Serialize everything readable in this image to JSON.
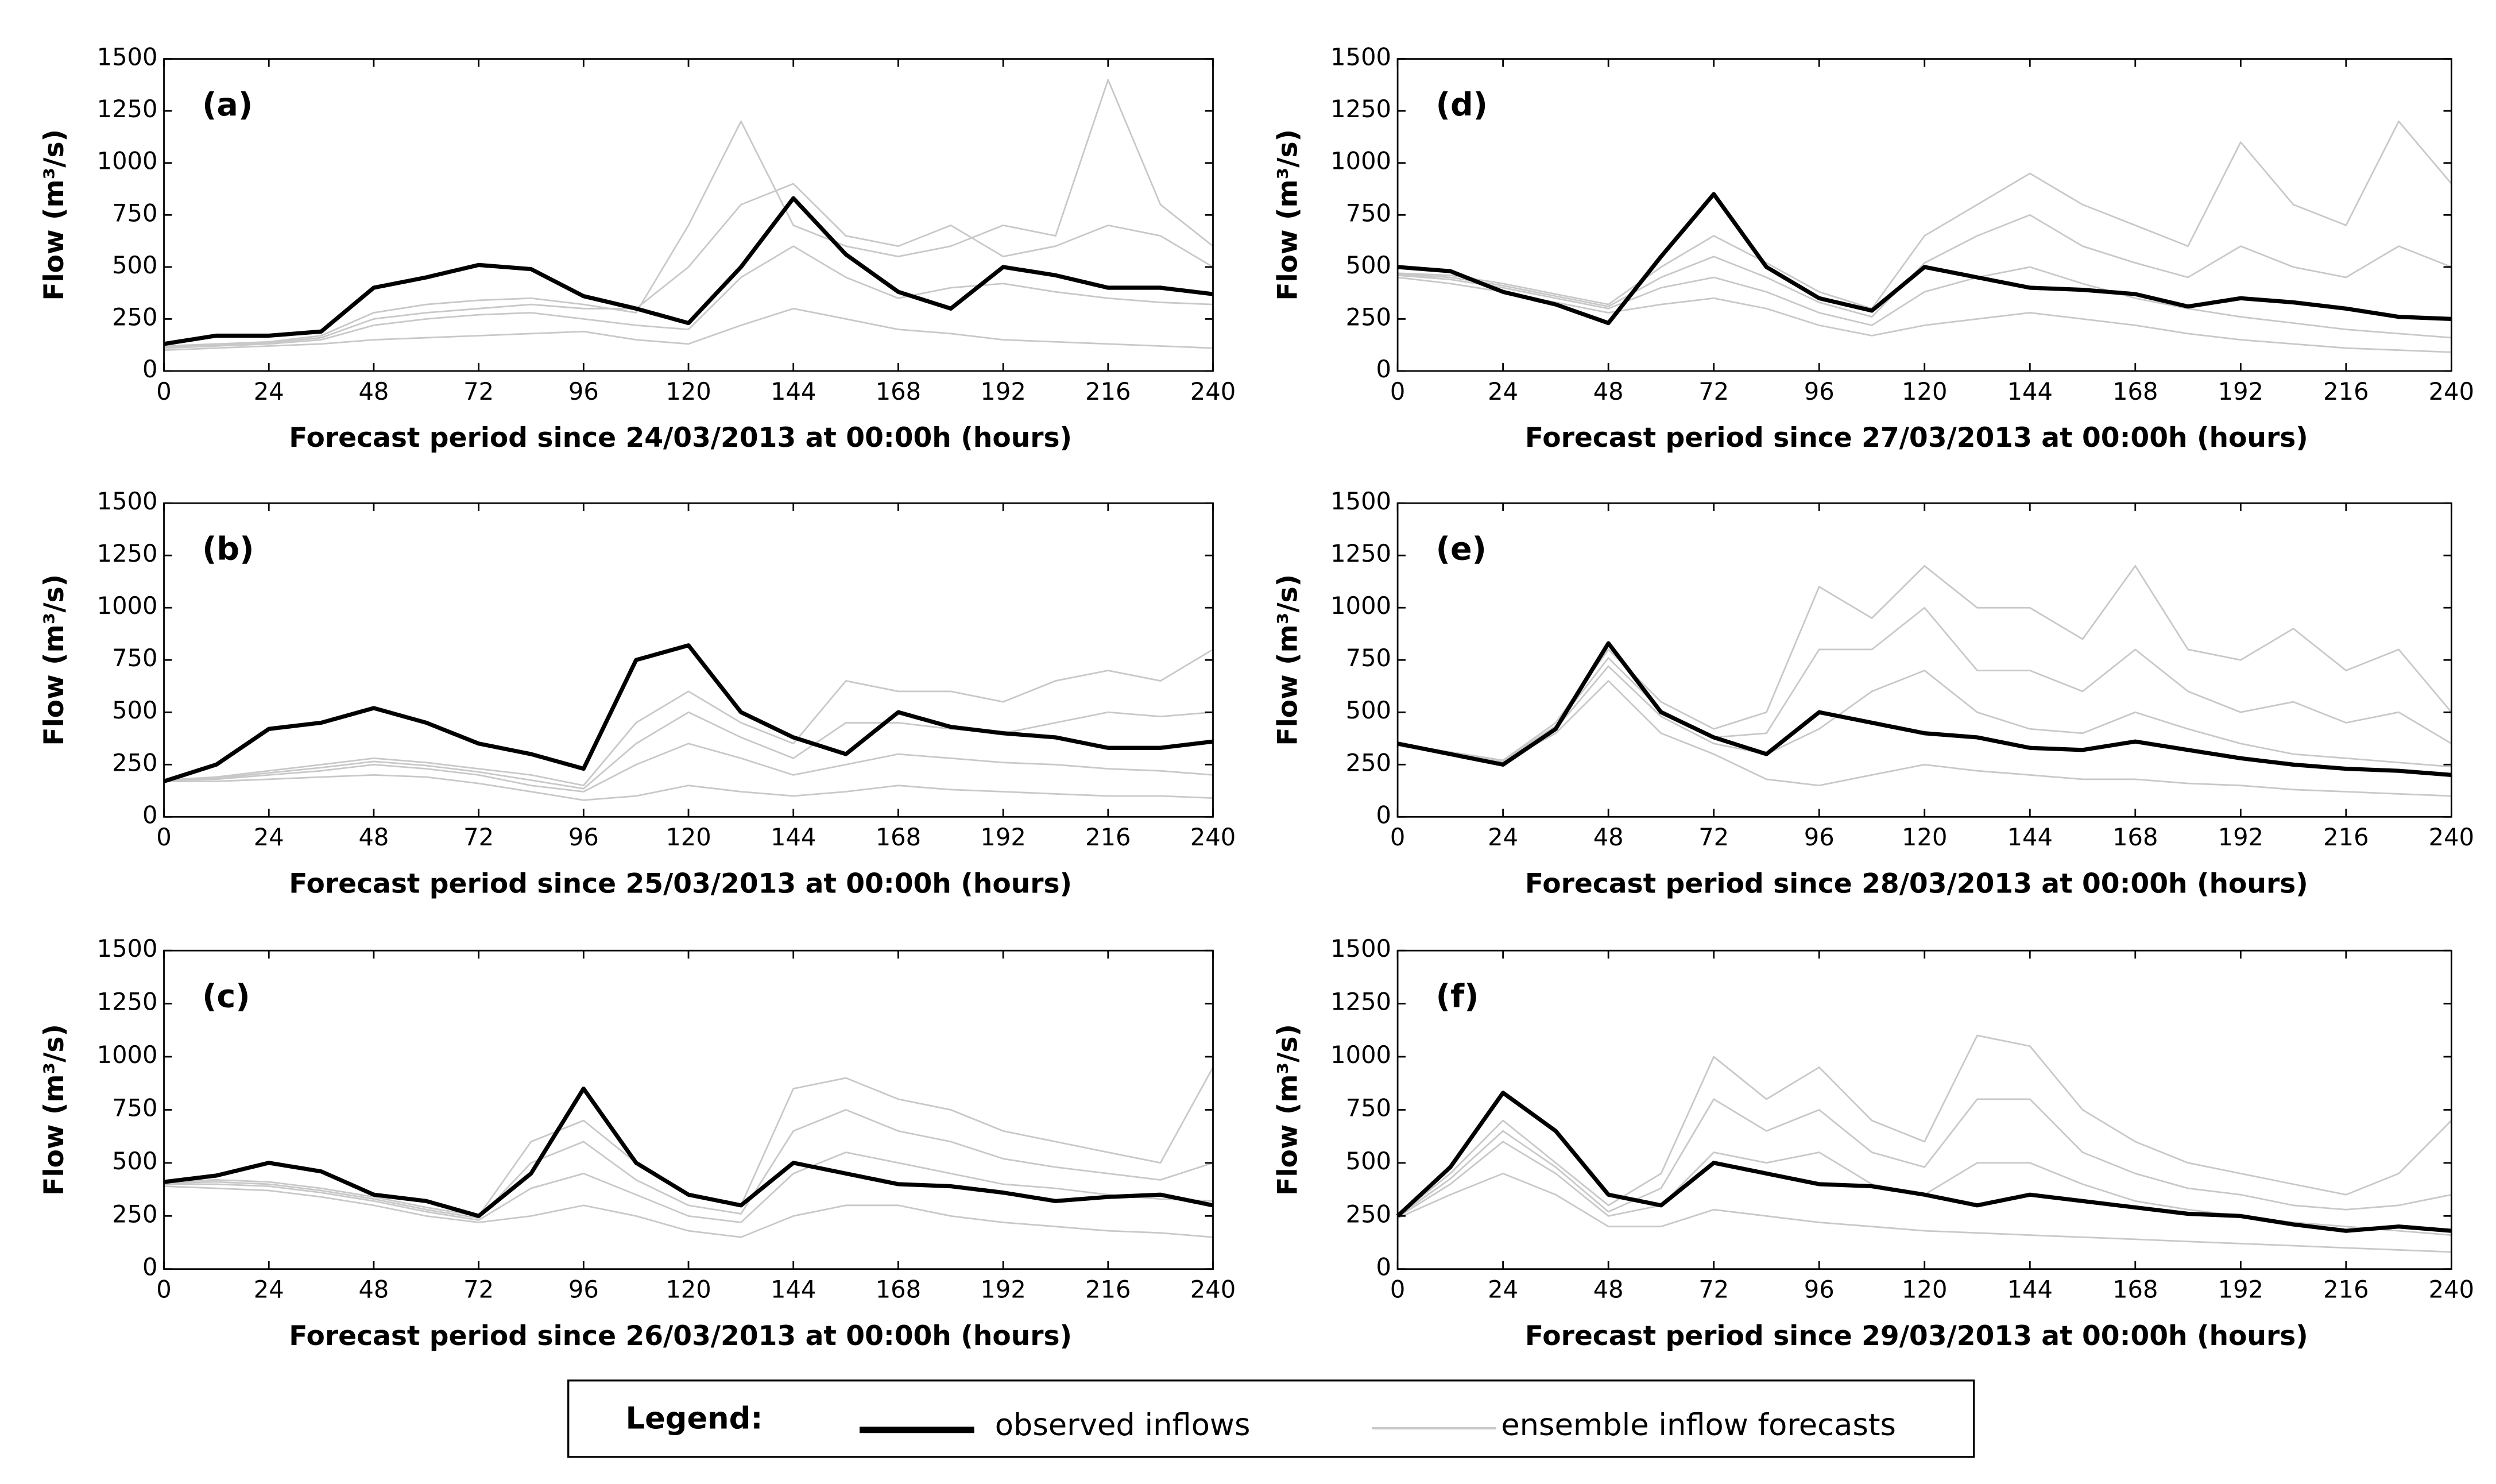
{
  "chart_data": [
    {
      "type": "line",
      "label": "(a)",
      "xlabel": "Forecast period since 24/03/2013 at 00:00h (hours)",
      "ylabel": "Flow (m³/s)",
      "x": [
        0,
        12,
        24,
        36,
        48,
        60,
        72,
        84,
        96,
        108,
        120,
        132,
        144,
        156,
        168,
        180,
        192,
        204,
        216,
        228,
        240
      ],
      "xlim": [
        0,
        240
      ],
      "ylim": [
        0,
        1500
      ],
      "xticks": [
        0,
        24,
        48,
        72,
        96,
        120,
        144,
        168,
        192,
        216,
        240
      ],
      "yticks": [
        0,
        250,
        500,
        750,
        1000,
        1250,
        1500
      ],
      "series": [
        {
          "name": "observed inflows",
          "color": "#000000",
          "values": [
            130,
            170,
            170,
            190,
            400,
            450,
            510,
            490,
            360,
            300,
            230,
            500,
            830,
            560,
            380,
            300,
            500,
            460,
            400,
            400,
            370
          ]
        },
        {
          "name": "ensemble inflow forecasts",
          "color": "#c8c8c8",
          "members": [
            [
              100,
              110,
              120,
              130,
              150,
              160,
              170,
              180,
              190,
              150,
              130,
              220,
              300,
              250,
              200,
              180,
              150,
              140,
              130,
              120,
              110
            ],
            [
              110,
              120,
              130,
              150,
              220,
              250,
              270,
              280,
              250,
              220,
              200,
              450,
              600,
              450,
              350,
              400,
              420,
              380,
              350,
              330,
              320
            ],
            [
              115,
              125,
              135,
              160,
              250,
              280,
              300,
              320,
              300,
              300,
              500,
              800,
              900,
              650,
              600,
              700,
              550,
              600,
              700,
              650,
              500
            ],
            [
              120,
              130,
              140,
              170,
              280,
              320,
              340,
              350,
              320,
              280,
              700,
              1200,
              700,
              600,
              550,
              600,
              700,
              650,
              1400,
              800,
              600
            ]
          ]
        }
      ]
    },
    {
      "type": "line",
      "label": "(b)",
      "xlabel": "Forecast period since 25/03/2013 at 00:00h (hours)",
      "ylabel": "Flow (m³/s)",
      "x": [
        0,
        12,
        24,
        36,
        48,
        60,
        72,
        84,
        96,
        108,
        120,
        132,
        144,
        156,
        168,
        180,
        192,
        204,
        216,
        228,
        240
      ],
      "xlim": [
        0,
        240
      ],
      "ylim": [
        0,
        1500
      ],
      "xticks": [
        0,
        24,
        48,
        72,
        96,
        120,
        144,
        168,
        192,
        216,
        240
      ],
      "yticks": [
        0,
        250,
        500,
        750,
        1000,
        1250,
        1500
      ],
      "series": [
        {
          "name": "observed inflows",
          "color": "#000000",
          "values": [
            170,
            250,
            420,
            450,
            520,
            450,
            350,
            300,
            230,
            750,
            820,
            500,
            380,
            300,
            500,
            430,
            400,
            380,
            330,
            330,
            360
          ]
        },
        {
          "name": "ensemble inflow forecasts",
          "color": "#c8c8c8",
          "members": [
            [
              170,
              170,
              180,
              190,
              200,
              190,
              160,
              120,
              80,
              100,
              150,
              120,
              100,
              120,
              150,
              130,
              120,
              110,
              100,
              100,
              90
            ],
            [
              175,
              180,
              200,
              220,
              250,
              230,
              200,
              150,
              120,
              250,
              350,
              280,
              200,
              250,
              300,
              280,
              260,
              250,
              230,
              220,
              200
            ],
            [
              172,
              185,
              210,
              235,
              265,
              245,
              215,
              175,
              135,
              350,
              500,
              380,
              280,
              450,
              450,
              420,
              400,
              450,
              500,
              480,
              500
            ],
            [
              175,
              190,
              220,
              250,
              280,
              260,
              230,
              200,
              150,
              450,
              600,
              450,
              350,
              650,
              600,
              600,
              550,
              650,
              700,
              650,
              800
            ]
          ]
        }
      ]
    },
    {
      "type": "line",
      "label": "(c)",
      "xlabel": "Forecast period since 26/03/2013 at 00:00h (hours)",
      "ylabel": "Flow (m³/s)",
      "x": [
        0,
        12,
        24,
        36,
        48,
        60,
        72,
        84,
        96,
        108,
        120,
        132,
        144,
        156,
        168,
        180,
        192,
        204,
        216,
        228,
        240
      ],
      "xlim": [
        0,
        240
      ],
      "ylim": [
        0,
        1500
      ],
      "xticks": [
        0,
        24,
        48,
        72,
        96,
        120,
        144,
        168,
        192,
        216,
        240
      ],
      "yticks": [
        0,
        250,
        500,
        750,
        1000,
        1250,
        1500
      ],
      "series": [
        {
          "name": "observed inflows",
          "color": "#000000",
          "values": [
            410,
            440,
            500,
            460,
            350,
            320,
            250,
            450,
            850,
            500,
            350,
            300,
            500,
            450,
            400,
            390,
            360,
            320,
            340,
            350,
            300
          ]
        },
        {
          "name": "ensemble inflow forecasts",
          "color": "#c8c8c8",
          "members": [
            [
              390,
              380,
              370,
              340,
              300,
              250,
              220,
              250,
              300,
              250,
              180,
              150,
              250,
              300,
              300,
              250,
              220,
              200,
              180,
              170,
              150
            ],
            [
              400,
              400,
              390,
              360,
              320,
              270,
              230,
              380,
              450,
              350,
              250,
              220,
              450,
              550,
              500,
              450,
              400,
              380,
              350,
              330,
              320
            ],
            [
              405,
              410,
              400,
              370,
              330,
              280,
              240,
              500,
              600,
              420,
              300,
              260,
              650,
              750,
              650,
              600,
              520,
              480,
              450,
              420,
              500
            ],
            [
              410,
              420,
              410,
              380,
              340,
              290,
              250,
              600,
              700,
              500,
              350,
              300,
              850,
              900,
              800,
              750,
              650,
              600,
              550,
              500,
              950
            ]
          ]
        }
      ]
    },
    {
      "type": "line",
      "label": "(d)",
      "xlabel": "Forecast period since 27/03/2013 at 00:00h (hours)",
      "ylabel": "Flow (m³/s)",
      "x": [
        0,
        12,
        24,
        36,
        48,
        60,
        72,
        84,
        96,
        108,
        120,
        132,
        144,
        156,
        168,
        180,
        192,
        204,
        216,
        228,
        240
      ],
      "xlim": [
        0,
        240
      ],
      "ylim": [
        0,
        1500
      ],
      "xticks": [
        0,
        24,
        48,
        72,
        96,
        120,
        144,
        168,
        192,
        216,
        240
      ],
      "yticks": [
        0,
        250,
        500,
        750,
        1000,
        1250,
        1500
      ],
      "series": [
        {
          "name": "observed inflows",
          "color": "#000000",
          "values": [
            500,
            480,
            380,
            320,
            230,
            550,
            850,
            500,
            350,
            290,
            500,
            450,
            400,
            390,
            370,
            310,
            350,
            330,
            300,
            260,
            250
          ]
        },
        {
          "name": "ensemble inflow forecasts",
          "color": "#c8c8c8",
          "members": [
            [
              450,
              420,
              380,
              330,
              280,
              320,
              350,
              300,
              220,
              170,
              220,
              250,
              280,
              250,
              220,
              180,
              150,
              130,
              110,
              100,
              90
            ],
            [
              460,
              440,
              400,
              350,
              300,
              400,
              450,
              380,
              280,
              220,
              380,
              450,
              500,
              420,
              350,
              300,
              260,
              230,
              200,
              180,
              160
            ],
            [
              465,
              450,
              410,
              360,
              310,
              450,
              550,
              450,
              330,
              260,
              520,
              650,
              750,
              600,
              520,
              450,
              600,
              500,
              450,
              600,
              500
            ],
            [
              470,
              460,
              420,
              370,
              320,
              500,
              650,
              520,
              380,
              300,
              650,
              800,
              950,
              800,
              700,
              600,
              1100,
              800,
              700,
              1200,
              900
            ]
          ]
        }
      ]
    },
    {
      "type": "line",
      "label": "(e)",
      "xlabel": "Forecast period since 28/03/2013 at 00:00h (hours)",
      "ylabel": "Flow (m³/s)",
      "x": [
        0,
        12,
        24,
        36,
        48,
        60,
        72,
        84,
        96,
        108,
        120,
        132,
        144,
        156,
        168,
        180,
        192,
        204,
        216,
        228,
        240
      ],
      "xlim": [
        0,
        240
      ],
      "ylim": [
        0,
        1500
      ],
      "xticks": [
        0,
        24,
        48,
        72,
        96,
        120,
        144,
        168,
        192,
        216,
        240
      ],
      "yticks": [
        0,
        250,
        500,
        750,
        1000,
        1250,
        1500
      ],
      "series": [
        {
          "name": "observed inflows",
          "color": "#000000",
          "values": [
            350,
            300,
            250,
            420,
            830,
            500,
            380,
            300,
            500,
            450,
            400,
            380,
            330,
            320,
            360,
            320,
            280,
            250,
            230,
            220,
            200
          ]
        },
        {
          "name": "ensemble inflow forecasts",
          "color": "#c8c8c8",
          "members": [
            [
              340,
              300,
              260,
              400,
              650,
              400,
              300,
              180,
              150,
              200,
              250,
              220,
              200,
              180,
              180,
              160,
              150,
              130,
              120,
              110,
              100
            ],
            [
              345,
              305,
              265,
              420,
              720,
              480,
              350,
              300,
              420,
              600,
              700,
              500,
              420,
              400,
              500,
              420,
              350,
              300,
              280,
              260,
              240
            ],
            [
              348,
              308,
              268,
              435,
              760,
              510,
              380,
              400,
              800,
              800,
              1000,
              700,
              700,
              600,
              800,
              600,
              500,
              550,
              450,
              500,
              350
            ],
            [
              350,
              310,
              270,
              450,
              800,
              550,
              420,
              500,
              1100,
              950,
              1200,
              1000,
              1000,
              850,
              1200,
              800,
              750,
              900,
              700,
              800,
              500
            ]
          ]
        }
      ]
    },
    {
      "type": "line",
      "label": "(f)",
      "xlabel": "Forecast period since 29/03/2013 at 00:00h (hours)",
      "ylabel": "Flow (m³/s)",
      "x": [
        0,
        12,
        24,
        36,
        48,
        60,
        72,
        84,
        96,
        108,
        120,
        132,
        144,
        156,
        168,
        180,
        192,
        204,
        216,
        228,
        240
      ],
      "xlim": [
        0,
        240
      ],
      "ylim": [
        0,
        1500
      ],
      "xticks": [
        0,
        24,
        48,
        72,
        96,
        120,
        144,
        168,
        192,
        216,
        240
      ],
      "yticks": [
        0,
        250,
        500,
        750,
        1000,
        1250,
        1500
      ],
      "series": [
        {
          "name": "observed inflows",
          "color": "#000000",
          "values": [
            250,
            480,
            830,
            650,
            350,
            300,
            500,
            450,
            400,
            390,
            350,
            300,
            350,
            320,
            290,
            260,
            250,
            210,
            180,
            200,
            180
          ]
        },
        {
          "name": "ensemble inflow forecasts",
          "color": "#c8c8c8",
          "members": [
            [
              240,
              350,
              450,
              350,
              200,
              200,
              280,
              250,
              220,
              200,
              180,
              170,
              160,
              150,
              140,
              130,
              120,
              110,
              100,
              90,
              80
            ],
            [
              245,
              400,
              600,
              450,
              250,
              300,
              550,
              500,
              550,
              400,
              350,
              500,
              500,
              400,
              320,
              280,
              250,
              220,
              200,
              180,
              160
            ],
            [
              248,
              425,
              650,
              480,
              270,
              380,
              800,
              650,
              750,
              550,
              480,
              800,
              800,
              550,
              450,
              380,
              350,
              300,
              280,
              300,
              350
            ],
            [
              250,
              450,
              700,
              500,
              300,
              450,
              1000,
              800,
              950,
              700,
              600,
              1100,
              1050,
              750,
              600,
              500,
              450,
              400,
              350,
              450,
              700
            ]
          ]
        }
      ]
    }
  ],
  "legend": {
    "title": "Legend:"
  }
}
